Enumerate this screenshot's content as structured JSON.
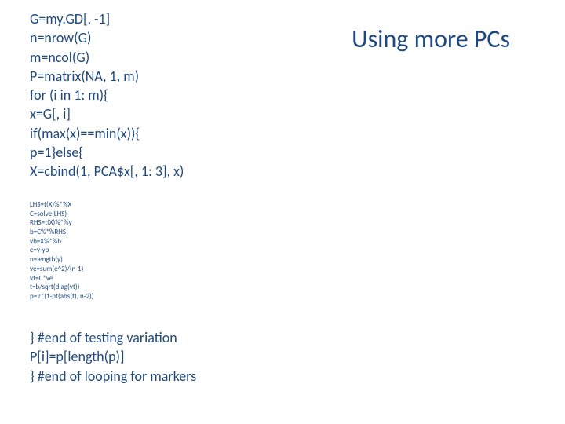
{
  "title": {
    "text": "Using more PCs",
    "color": "#1f497d",
    "fontsize": 32
  },
  "codeMain": {
    "color": "#1f497d",
    "fontsize": 18,
    "lines": [
      "G=my.GD[, -1]",
      "n=nrow(G)",
      "m=ncol(G)",
      "P=matrix(NA, 1, m)",
      "for (i in 1: m){",
      "x=G[, i]",
      "if(max(x)==min(x)){",
      "p=1}else{",
      "X=cbind(1, PCA$x[, 1: 3], x)"
    ]
  },
  "codeSmall": {
    "color": "#1f497d",
    "fontsize": 9,
    "lines": [
      "LHS=t(X)%*%X",
      "C=solve(LHS)",
      "RHS=t(X)%*%y",
      "b=C%*%RHS",
      "yb=X%*%b",
      "e=y-yb",
      "n=length(y)",
      "ve=sum(e^2)/(n-1)",
      "vt=C*ve",
      "t=b/sqrt(diag(vt))",
      "p=2*(1-pt(abs(t), n-2))"
    ]
  },
  "codeEnd": {
    "color": "#1f497d",
    "fontsize": 18,
    "lines": [
      "} #end of testing variation",
      "P[i]=p[length(p)]",
      "} #end of looping for markers"
    ]
  }
}
